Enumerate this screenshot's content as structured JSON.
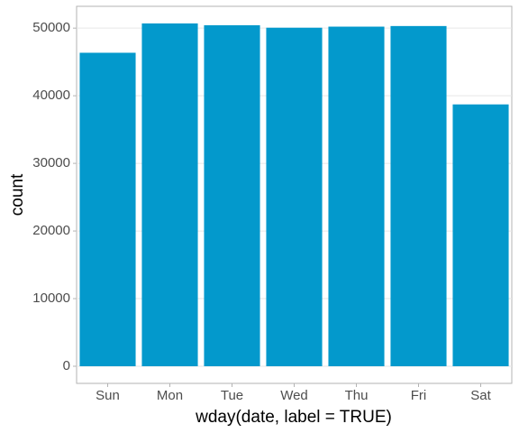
{
  "chart_data": {
    "type": "bar",
    "x_label": "wday(date, label = TRUE)",
    "y_label": "count",
    "categories": [
      "Sun",
      "Mon",
      "Tue",
      "Wed",
      "Thu",
      "Fri",
      "Sat"
    ],
    "values": [
      46357,
      50690,
      50422,
      50060,
      50219,
      50308,
      38720
    ],
    "color": "#0399cc",
    "ylim": [
      -2534.5,
      53224.5
    ],
    "yticks": [
      0,
      10000,
      20000,
      30000,
      40000,
      50000
    ],
    "grid": true
  }
}
